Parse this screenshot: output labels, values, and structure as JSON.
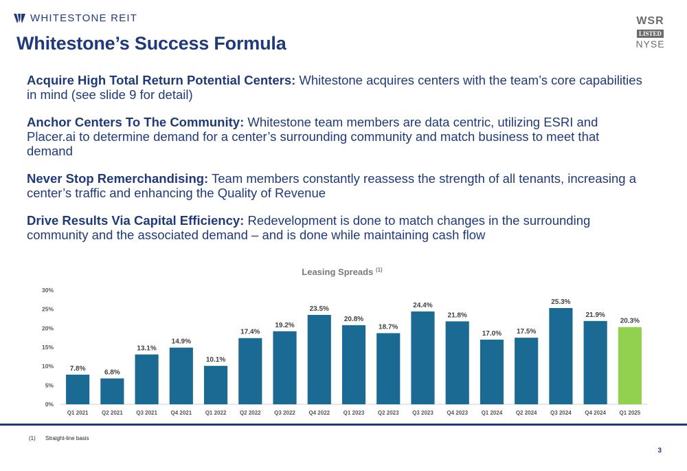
{
  "header": {
    "company": "WHITESTONE REIT",
    "badge_top": "WSR",
    "badge_mid": "LISTED",
    "badge_bottom": "NYSE",
    "title": "Whitestone’s Success Formula"
  },
  "points": [
    {
      "lead": "Acquire High Total Return Potential Centers:",
      "text": " Whitestone acquires centers with the team’s core capabilities in mind (see slide 9 for detail)"
    },
    {
      "lead": "Anchor Centers To The Community:",
      "text": " Whitestone team members are data centric, utilizing ESRI and Placer.ai to determine demand for a center’s surrounding community and match business to meet that demand"
    },
    {
      "lead": "Never Stop Remerchandising:",
      "text": " Team members constantly reassess the strength of all tenants, increasing a center’s traffic and enhancing the Quality of Revenue"
    },
    {
      "lead": "Drive Results Via Capital Efficiency:",
      "text": " Redevelopment is done to match changes in the surrounding community and the associated demand – and is done while maintaining cash flow"
    }
  ],
  "chart_data": {
    "type": "bar",
    "title": "Leasing Spreads",
    "title_superscript": "(1)",
    "categories": [
      "Q1 2021",
      "Q2 2021",
      "Q3 2021",
      "Q4 2021",
      "Q1 2022",
      "Q2 2022",
      "Q3 2022",
      "Q4 2022",
      "Q1 2023",
      "Q2 2023",
      "Q3 2023",
      "Q4 2023",
      "Q1 2024",
      "Q2 2024",
      "Q3 2024",
      "Q4 2024",
      "Q1 2025"
    ],
    "values": [
      7.8,
      6.8,
      13.1,
      14.9,
      10.1,
      17.4,
      19.2,
      23.5,
      20.8,
      18.7,
      24.4,
      21.8,
      17.0,
      17.5,
      25.3,
      21.9,
      20.3
    ],
    "value_labels": [
      "7.8%",
      "6.8%",
      "13.1%",
      "14.9%",
      "10.1%",
      "17.4%",
      "19.2%",
      "23.5%",
      "20.8%",
      "18.7%",
      "24.4%",
      "21.8%",
      "17.0%",
      "17.5%",
      "25.3%",
      "21.9%",
      "20.3%"
    ],
    "yticks": [
      "0%",
      "5%",
      "10%",
      "15%",
      "20%",
      "25%",
      "30%"
    ],
    "ylim": [
      0,
      30
    ],
    "grid": false,
    "colors": {
      "bar": "#1b6a93",
      "highlight": "#92d050",
      "highlight_index": 16
    }
  },
  "footer": {
    "footnote_num": "(1)",
    "footnote_text": "Straight-line basis",
    "page": "3"
  }
}
